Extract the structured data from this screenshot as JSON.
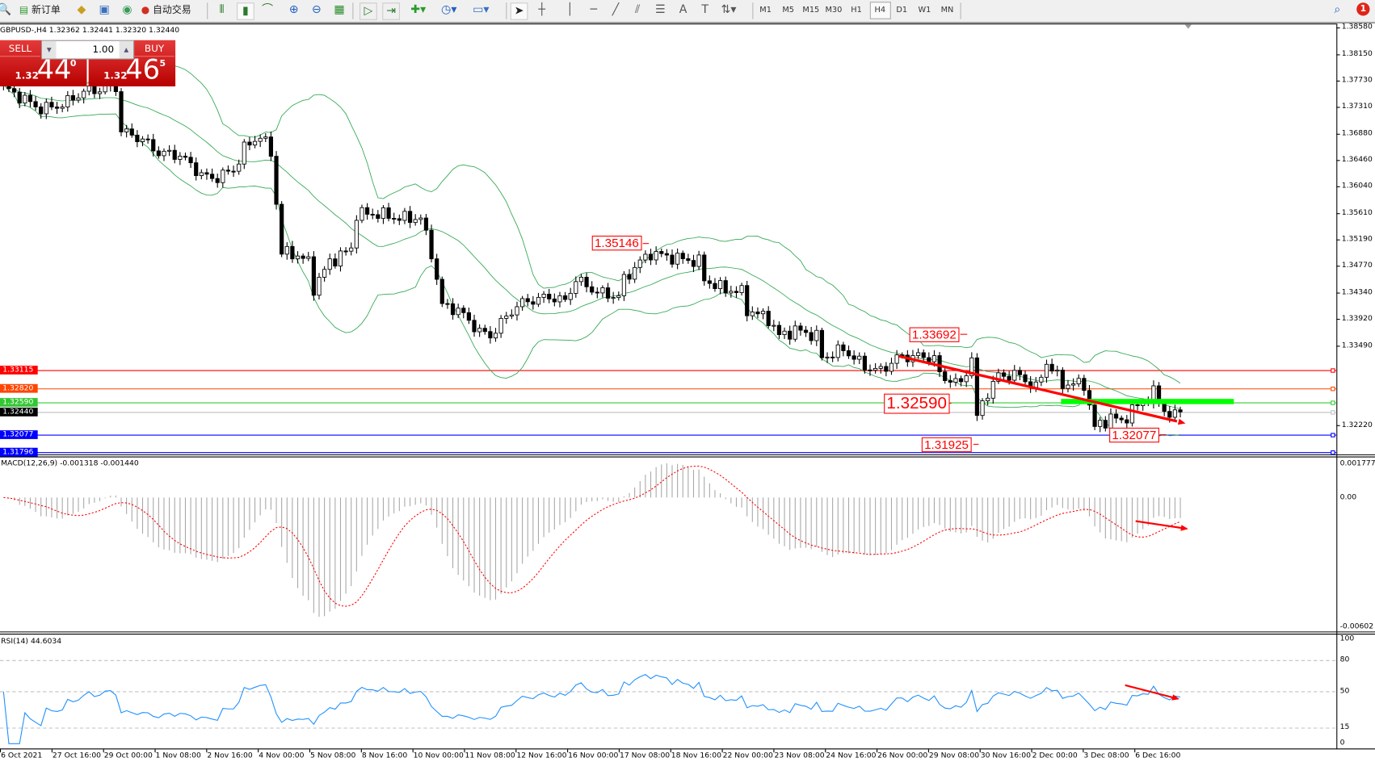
{
  "toolbar": {
    "new_order": "新订单",
    "auto_trade": "自动交易",
    "timeframes": [
      "M1",
      "M5",
      "M15",
      "M30",
      "H1",
      "H4",
      "D1",
      "W1",
      "MN"
    ],
    "active_timeframe": "H4",
    "notification_count": "1",
    "icons": [
      "search-icon",
      "new-order-icon",
      "strategy-tester-icon",
      "market-watch-icon",
      "signals-icon",
      "auto-trade-icon",
      "bar-chart-icon",
      "candlestick-icon",
      "line-chart-icon",
      "zoom-in-icon",
      "zoom-out-icon",
      "tile-windows-icon",
      "auto-scroll-icon",
      "chart-shift-icon",
      "indicators-icon",
      "periods-icon",
      "templates-icon",
      "cursor-icon",
      "crosshair-icon",
      "vertical-line-icon",
      "horizontal-line-icon",
      "trendline-icon",
      "fibo-channel-icon",
      "fibo-retracement-icon",
      "text-icon",
      "text-label-icon",
      "arrows-icon"
    ]
  },
  "chart": {
    "header": "GBPUSD-,H4  1.32362 1.32441 1.32320 1.32440",
    "trade_panel": {
      "sell_label": "SELL",
      "buy_label": "BUY",
      "lot": "1.00",
      "sell_prefix": "1.32",
      "sell_big": "44",
      "sell_sup": "0",
      "buy_prefix": "1.32",
      "buy_big": "46",
      "buy_sup": "5"
    },
    "annotations": [
      "1.35146",
      "1.33692",
      "1.32590",
      "1.31925",
      "1.32077"
    ],
    "macd_label": "MACD(12,26,9) -0.001318 -0.001440",
    "rsi_label": "RSI(14) 44.6034"
  },
  "chart_data": {
    "type": "candlestick",
    "symbol": "GBPUSD-",
    "timeframe": "H4",
    "price_ticks": [
      "1.38580",
      "1.38150",
      "1.37730",
      "1.37310",
      "1.36880",
      "1.36460",
      "1.36040",
      "1.35610",
      "1.35190",
      "1.34770",
      "1.34340",
      "1.33920",
      "1.33490",
      "1.32220"
    ],
    "price_range": [
      1.31796,
      1.3858
    ],
    "level_labels": [
      {
        "value": "1.33115",
        "color": "#ff0000"
      },
      {
        "value": "1.32820",
        "color": "#ff4500"
      },
      {
        "value": "1.32590",
        "color": "#32c832"
      },
      {
        "value": "1.32440",
        "color": "#000000"
      },
      {
        "value": "1.32077",
        "color": "#0000ff"
      },
      {
        "value": "1.31796",
        "color": "#0000ff"
      }
    ],
    "hline_colors": {
      "1.33115": "#ff0000",
      "1.32820": "#ff4500",
      "1.32590": "#32cd32",
      "1.32440": "#c0c0c0",
      "1.32077": "#0000ff",
      "1.31796": "#0000ff"
    },
    "time_labels": [
      "6 Oct 2021",
      "27 Oct 16:00",
      "29 Oct 00:00",
      "1 Nov 08:00",
      "2 Nov 16:00",
      "4 Nov 00:00",
      "5 Nov 08:00",
      "8 Nov 16:00",
      "10 Nov 00:00",
      "11 Nov 08:00",
      "12 Nov 16:00",
      "16 Nov 00:00",
      "17 Nov 08:00",
      "18 Nov 16:00",
      "22 Nov 00:00",
      "23 Nov 08:00",
      "24 Nov 16:00",
      "26 Nov 00:00",
      "29 Nov 08:00",
      "30 Nov 16:00",
      "2 Dec 00:00",
      "3 Dec 08:00",
      "6 Dec 16:00"
    ],
    "close_trace": [
      [
        0,
        1.37631
      ],
      [
        7,
        1.37282
      ],
      [
        11,
        1.37352
      ],
      [
        15,
        1.37561
      ],
      [
        21,
        1.37631
      ],
      [
        22,
        1.36933
      ],
      [
        26,
        1.36793
      ],
      [
        29,
        1.36584
      ],
      [
        33,
        1.36542
      ],
      [
        37,
        1.36235
      ],
      [
        39,
        1.36165
      ],
      [
        43,
        1.36305
      ],
      [
        45,
        1.36654
      ],
      [
        48,
        1.36863
      ],
      [
        50,
        1.36584
      ],
      [
        52,
        1.34979
      ],
      [
        54,
        1.34979
      ],
      [
        57,
        1.34839
      ],
      [
        58,
        1.3442
      ],
      [
        61,
        1.34839
      ],
      [
        65,
        1.35048
      ],
      [
        66,
        1.35607
      ],
      [
        70,
        1.35607
      ],
      [
        74,
        1.35537
      ],
      [
        78,
        1.35537
      ],
      [
        80,
        1.34979
      ],
      [
        82,
        1.34141
      ],
      [
        85,
        1.34071
      ],
      [
        89,
        1.33722
      ],
      [
        91,
        1.33653
      ],
      [
        93,
        1.33862
      ],
      [
        96,
        1.34141
      ],
      [
        98,
        1.34211
      ],
      [
        102,
        1.34281
      ],
      [
        105,
        1.34211
      ],
      [
        107,
        1.3456
      ],
      [
        111,
        1.34351
      ],
      [
        115,
        1.34281
      ],
      [
        116,
        1.3456
      ],
      [
        119,
        1.34839
      ],
      [
        121,
        1.34979
      ],
      [
        125,
        1.34909
      ],
      [
        130,
        1.34839
      ],
      [
        131,
        1.3456
      ],
      [
        134,
        1.3442
      ],
      [
        138,
        1.34351
      ],
      [
        139,
        1.34071
      ],
      [
        143,
        1.33932
      ],
      [
        145,
        1.33653
      ],
      [
        148,
        1.3375
      ],
      [
        152,
        1.33653
      ],
      [
        153,
        1.33304
      ],
      [
        157,
        1.33443
      ],
      [
        161,
        1.33164
      ],
      [
        164,
        1.33094
      ],
      [
        167,
        1.33304
      ],
      [
        170,
        1.33332
      ],
      [
        174,
        1.33304
      ],
      [
        175,
        1.33024
      ],
      [
        179,
        1.32885
      ],
      [
        181,
        1.33304
      ],
      [
        182,
        1.32327
      ],
      [
        183,
        1.32606
      ],
      [
        186,
        1.33024
      ],
      [
        190,
        1.33024
      ],
      [
        193,
        1.32815
      ],
      [
        195,
        1.33234
      ],
      [
        198,
        1.32885
      ],
      [
        202,
        1.32885
      ],
      [
        204,
        1.32187
      ],
      [
        207,
        1.32354
      ],
      [
        209,
        1.32285
      ],
      [
        211,
        1.32466
      ],
      [
        215,
        1.32745
      ],
      [
        217,
        1.32466
      ],
      [
        219,
        1.32354
      ],
      [
        220,
        1.3244
      ]
    ],
    "indicators": {
      "bollinger": {
        "period": 20,
        "deviations": 2,
        "color": "#32a852"
      },
      "macd": {
        "fast": 12,
        "slow": 26,
        "signal": 9,
        "main": -0.001318,
        "signal_value": -0.00144,
        "ticks": [
          "0.001777",
          "0.00",
          "-0.00602"
        ],
        "hist_color": "#a8a8a8",
        "signal_color": "#ff0000"
      },
      "rsi": {
        "period": 14,
        "value": 44.6034,
        "levels": [
          "80",
          "50",
          "15"
        ],
        "ticks": [
          "100",
          "0"
        ],
        "color": "#1e90ff"
      }
    }
  }
}
